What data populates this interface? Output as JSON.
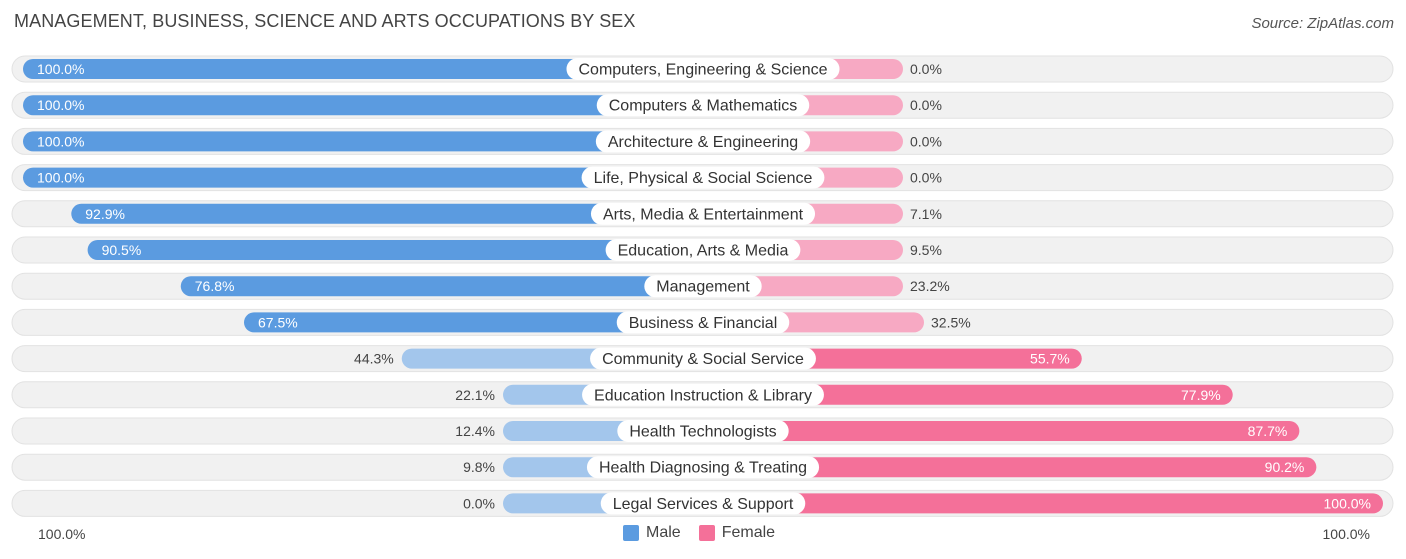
{
  "header": {
    "title": "MANAGEMENT, BUSINESS, SCIENCE AND ARTS OCCUPATIONS BY SEX",
    "source": "Source: ZipAtlas.com"
  },
  "axis": {
    "left_label": "100.0%",
    "right_label": "100.0%"
  },
  "legend": {
    "male": "Male",
    "female": "Female"
  },
  "colors": {
    "male_strong": "#5b9be0",
    "male_light": "#a3c6ec",
    "female_strong": "#f47099",
    "female_light": "#f7a9c3",
    "track": "#f1f1f1"
  },
  "chart_data": {
    "type": "bar",
    "title": "MANAGEMENT, BUSINESS, SCIENCE AND ARTS OCCUPATIONS BY SEX",
    "xlabel": "",
    "ylabel": "",
    "xlim": [
      0,
      100
    ],
    "categories": [
      "Computers, Engineering & Science",
      "Computers & Mathematics",
      "Architecture & Engineering",
      "Life, Physical & Social Science",
      "Arts, Media & Entertainment",
      "Education, Arts & Media",
      "Management",
      "Business & Financial",
      "Community & Social Service",
      "Education Instruction & Library",
      "Health Technologists",
      "Health Diagnosing & Treating",
      "Legal Services & Support"
    ],
    "series": [
      {
        "name": "Male",
        "values": [
          100.0,
          100.0,
          100.0,
          100.0,
          92.9,
          90.5,
          76.8,
          67.5,
          44.3,
          22.1,
          12.4,
          9.8,
          0.0
        ],
        "labels": [
          "100.0%",
          "100.0%",
          "100.0%",
          "100.0%",
          "92.9%",
          "90.5%",
          "76.8%",
          "67.5%",
          "44.3%",
          "22.1%",
          "12.4%",
          "9.8%",
          "0.0%"
        ]
      },
      {
        "name": "Female",
        "values": [
          0.0,
          0.0,
          0.0,
          0.0,
          7.1,
          9.5,
          23.2,
          32.5,
          55.7,
          77.9,
          87.7,
          90.2,
          100.0
        ],
        "labels": [
          "0.0%",
          "0.0%",
          "0.0%",
          "0.0%",
          "7.1%",
          "9.5%",
          "23.2%",
          "32.5%",
          "55.7%",
          "77.9%",
          "87.7%",
          "90.2%",
          "100.0%"
        ]
      }
    ],
    "legend_position": "bottom-center"
  }
}
